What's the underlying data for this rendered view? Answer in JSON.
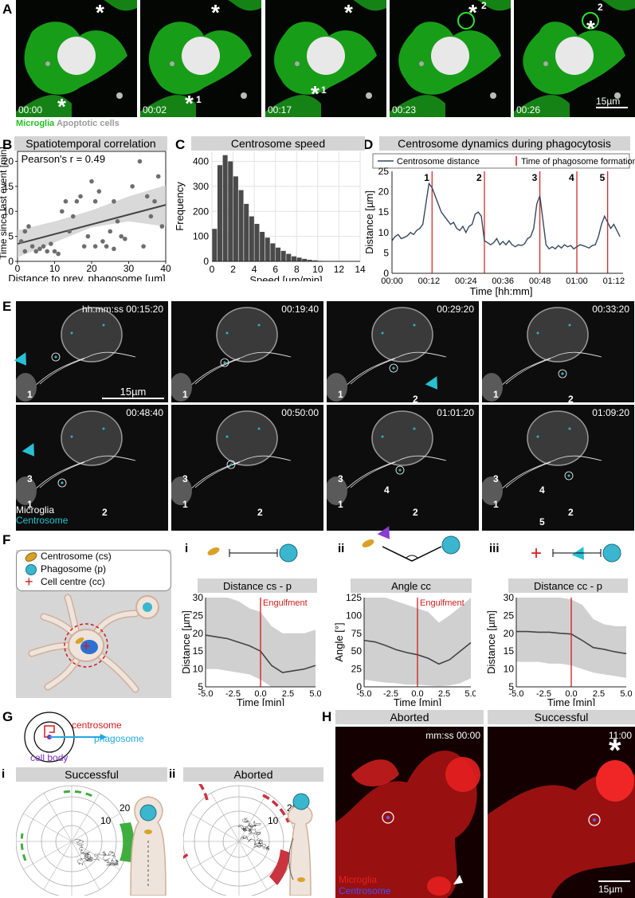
{
  "panel_letters": [
    "A",
    "B",
    "C",
    "D",
    "E",
    "F",
    "G",
    "H"
  ],
  "panel_A": {
    "timestamps": [
      "00:00",
      "00:02",
      "00:17",
      "00:23",
      "00:26"
    ],
    "event_labels": [
      "1",
      "1",
      "2",
      "2"
    ],
    "star": "*",
    "scalebar": "15µm",
    "legend_microglia": "Microglia",
    "legend_apoptotic": "Apoptotic cells"
  },
  "chart_data": [
    {
      "type": "scatter",
      "title": "Spatiotemporal correlation",
      "annotation": "Pearson's r = 0.49",
      "xlabel": "Distance to prev. phagosome [µm]",
      "ylabel": "Time since last event [min]",
      "xlim": [
        0,
        40
      ],
      "ylim": [
        0,
        22
      ],
      "xticks": [
        "0",
        "10",
        "20",
        "30",
        "40"
      ],
      "yticks": [
        "0",
        "5",
        "10",
        "15",
        "20"
      ],
      "points": [
        [
          1,
          4
        ],
        [
          2,
          2
        ],
        [
          2,
          6
        ],
        [
          3,
          7
        ],
        [
          4,
          3
        ],
        [
          5,
          2
        ],
        [
          6,
          2.5
        ],
        [
          7,
          3
        ],
        [
          8,
          2
        ],
        [
          9,
          3.5
        ],
        [
          10,
          2
        ],
        [
          11,
          1.5
        ],
        [
          12,
          10
        ],
        [
          13,
          12
        ],
        [
          14,
          6
        ],
        [
          15,
          9
        ],
        [
          16,
          12
        ],
        [
          17,
          13
        ],
        [
          18,
          3
        ],
        [
          19,
          5
        ],
        [
          20,
          16
        ],
        [
          21,
          12
        ],
        [
          22,
          14
        ],
        [
          23,
          4
        ],
        [
          24,
          3
        ],
        [
          25,
          6
        ],
        [
          26,
          12
        ],
        [
          27,
          8
        ],
        [
          28,
          5
        ],
        [
          29,
          4.5
        ],
        [
          31,
          15
        ],
        [
          33,
          20
        ],
        [
          35,
          13
        ],
        [
          37,
          12
        ],
        [
          38,
          17
        ],
        [
          39,
          7
        ],
        [
          36,
          9
        ],
        [
          34,
          3
        ],
        [
          26,
          2.5
        ],
        [
          21,
          3
        ]
      ],
      "fit": {
        "x": [
          0,
          40
        ],
        "y": [
          3.5,
          11.3
        ]
      },
      "band": {
        "x": [
          0,
          10,
          20,
          30,
          40
        ],
        "lower": [
          0.8,
          3.8,
          6.8,
          8.0,
          7.0
        ],
        "upper": [
          6.2,
          8.0,
          10.2,
          13.0,
          15.2
        ]
      }
    },
    {
      "type": "bar",
      "title": "Centrosome speed",
      "xlabel": "Speed [µm/min]",
      "ylabel": "Frequency",
      "xlim": [
        0,
        14
      ],
      "ylim": [
        0,
        440
      ],
      "xticks": [
        "0",
        "2",
        "4",
        "6",
        "8",
        "10",
        "12",
        "14"
      ],
      "yticks": [
        "0",
        "100",
        "200",
        "300",
        "400"
      ],
      "bin_width": 0.5,
      "bin_starts": [
        0,
        0.5,
        1,
        1.5,
        2,
        2.5,
        3,
        3.5,
        4,
        4.5,
        5,
        5.5,
        6,
        6.5,
        7,
        7.5,
        8,
        8.5,
        9,
        9.5,
        10,
        10.5,
        11,
        11.5,
        12,
        12.5,
        13,
        13.5
      ],
      "values": [
        130,
        385,
        425,
        400,
        340,
        285,
        230,
        180,
        150,
        118,
        95,
        72,
        55,
        42,
        30,
        20,
        15,
        10,
        6,
        4,
        2,
        1,
        0,
        0,
        0,
        0,
        0,
        0
      ]
    },
    {
      "type": "line",
      "title": "Centrosome dynamics during phagocytosis",
      "xlabel": "Time [hh:mm]",
      "ylabel": "Distance [µm]",
      "xlim_minutes": [
        0,
        75
      ],
      "ylim": [
        0,
        25
      ],
      "xticks": [
        "00:00",
        "00:12",
        "00:24",
        "00:36",
        "00:48",
        "01:00",
        "01:12"
      ],
      "yticks": [
        "0",
        "5",
        "10",
        "15",
        "20",
        "25"
      ],
      "legend": [
        "Centrosome distance",
        "Time of phagosome formation"
      ],
      "series_name": "Centrosome distance",
      "x_minutes": [
        0,
        1,
        2,
        3,
        4,
        5,
        6,
        7,
        8,
        9,
        10,
        11,
        12,
        13,
        14,
        15,
        16,
        17,
        18,
        19,
        20,
        21,
        22,
        23,
        24,
        25,
        26,
        27,
        28,
        29,
        30,
        31,
        32,
        33,
        34,
        35,
        36,
        37,
        38,
        39,
        40,
        41,
        42,
        43,
        44,
        45,
        46,
        47,
        48,
        49,
        50,
        51,
        52,
        53,
        54,
        55,
        56,
        57,
        58,
        59,
        60,
        61,
        62,
        63,
        64,
        65,
        66,
        67,
        68,
        69,
        70,
        71,
        72,
        73,
        74
      ],
      "y": [
        8,
        9,
        9.5,
        8.5,
        8.8,
        9.2,
        10,
        9.5,
        10.5,
        11,
        12,
        17,
        22,
        21,
        19,
        17,
        15,
        14,
        13,
        12,
        12.5,
        11,
        10.5,
        11.5,
        10,
        11.5,
        12,
        14.5,
        15,
        14,
        8,
        7.5,
        7,
        7.5,
        8.5,
        7,
        7.8,
        7,
        8,
        7,
        6.5,
        7,
        6.8,
        7.2,
        8.5,
        9,
        11,
        17,
        19,
        13,
        7,
        6,
        6.5,
        6,
        6.8,
        6.2,
        7,
        6.5,
        6.8,
        6,
        6.5,
        7,
        6.8,
        6.5,
        6.2,
        6.8,
        7,
        9,
        12,
        14,
        12.5,
        11,
        12,
        10.5,
        9
      ],
      "event_minutes": [
        13,
        30,
        48,
        60,
        70
      ],
      "event_labels": [
        "1",
        "2",
        "3",
        "4",
        "5"
      ]
    },
    {
      "type": "line",
      "title": "Distance cs - p",
      "annotation": "Engulfment",
      "xlabel": "Time [min]",
      "ylabel": "Distance [µm]",
      "xlim": [
        -5,
        5
      ],
      "ylim": [
        5,
        30
      ],
      "xticks": [
        "-5.0",
        "-2.5",
        "0.0",
        "2.5",
        "5.0"
      ],
      "yticks": [
        "5",
        "10",
        "15",
        "20",
        "25",
        "30"
      ],
      "x": [
        -5,
        -4,
        -3,
        -2,
        -1,
        0,
        1,
        2,
        3,
        4,
        5
      ],
      "mean": [
        19.5,
        19,
        18.5,
        17.5,
        16.5,
        15,
        11,
        9,
        9.5,
        10,
        11
      ],
      "lower": [
        10,
        10,
        9.5,
        9,
        8.5,
        7,
        4.5,
        3.5,
        4,
        4.5,
        5
      ],
      "upper": [
        30,
        30,
        30,
        29,
        27,
        26,
        22,
        20,
        20,
        20,
        21
      ]
    },
    {
      "type": "line",
      "title": "Angle cc",
      "annotation": "Engulfment",
      "xlabel": "Time [min]",
      "ylabel": "Angle  [°]",
      "xlim": [
        -5,
        5
      ],
      "ylim": [
        0,
        125
      ],
      "xticks": [
        "-5.0",
        "-2.5",
        "0.0",
        "2.5",
        "5.0"
      ],
      "yticks": [
        "0",
        "25",
        "50",
        "75",
        "100",
        "125"
      ],
      "x": [
        -5,
        -4,
        -3,
        -2,
        -1,
        0,
        1,
        2,
        3,
        4,
        5
      ],
      "mean": [
        65,
        63,
        58,
        52,
        48,
        45,
        40,
        32,
        38,
        50,
        62
      ],
      "lower": [
        10,
        8,
        6,
        5,
        3,
        3,
        2,
        1,
        2,
        5,
        12
      ],
      "upper": [
        125,
        125,
        125,
        120,
        115,
        110,
        105,
        90,
        100,
        112,
        125
      ]
    },
    {
      "type": "line",
      "title": "Distance cc - p",
      "xlabel": "Time [min]",
      "ylabel": "Distance [µm]",
      "xlim": [
        -5,
        5
      ],
      "ylim": [
        5,
        30
      ],
      "xticks": [
        "-5.0",
        "-2.5",
        "0.0",
        "2.5",
        "5.0"
      ],
      "yticks": [
        "5",
        "10",
        "15",
        "20",
        "25",
        "30"
      ],
      "x": [
        -5,
        -4,
        -3,
        -2,
        -1,
        0,
        1,
        2,
        3,
        4,
        5
      ],
      "mean": [
        20.5,
        20.5,
        20.3,
        20.3,
        20,
        19.8,
        18,
        16,
        15.5,
        14.8,
        14.3
      ],
      "lower": [
        12,
        12,
        12,
        11.5,
        11.5,
        11,
        10,
        9,
        8.5,
        8,
        7.5
      ],
      "upper": [
        30,
        30,
        30,
        30,
        30,
        29.5,
        28,
        24,
        22.5,
        22,
        22
      ]
    }
  ],
  "panel_E": {
    "header": "hh:mm:ss",
    "timestamps": [
      "00:15:20",
      "00:19:40",
      "00:29:20",
      "00:33:20",
      "00:48:40",
      "00:50:00",
      "01:01:20",
      "01:09:20"
    ],
    "nums": [
      "1",
      "2",
      "3",
      "4",
      "5"
    ],
    "scalebar": "15µm",
    "legend_microglia": "Microglia",
    "legend_centrosome": "Centrosome"
  },
  "panel_F": {
    "legend": [
      "Centrosome (cs)",
      "Phagosome (p)",
      "Cell centre (cc)"
    ],
    "sub_i": "i",
    "sub_ii": "ii",
    "sub_iii": "iii"
  },
  "panel_G": {
    "labels": [
      "centrosome",
      "phagosome",
      "cell body"
    ],
    "sub_i": "i",
    "sub_i_title": "Successful",
    "sub_ii": "ii",
    "sub_ii_title": "Aborted",
    "ring_labels": [
      "10",
      "20"
    ]
  },
  "panel_H": {
    "aborted": "Aborted",
    "successful": "Successful",
    "time1": "mm:ss 00:00",
    "time2": "11:00",
    "legend_microglia": "Microglia",
    "legend_centrosome": "Centrosome",
    "scalebar": "15µm",
    "star": "*"
  },
  "colors": {
    "microglia_green": "#1fd11f",
    "centrosome_cyan": "#23b5c8",
    "event_red": "#d21b1b",
    "aborted_red": "#c9343f",
    "success_green": "#3fae3f",
    "gray_panel": "#d4d4d4"
  }
}
